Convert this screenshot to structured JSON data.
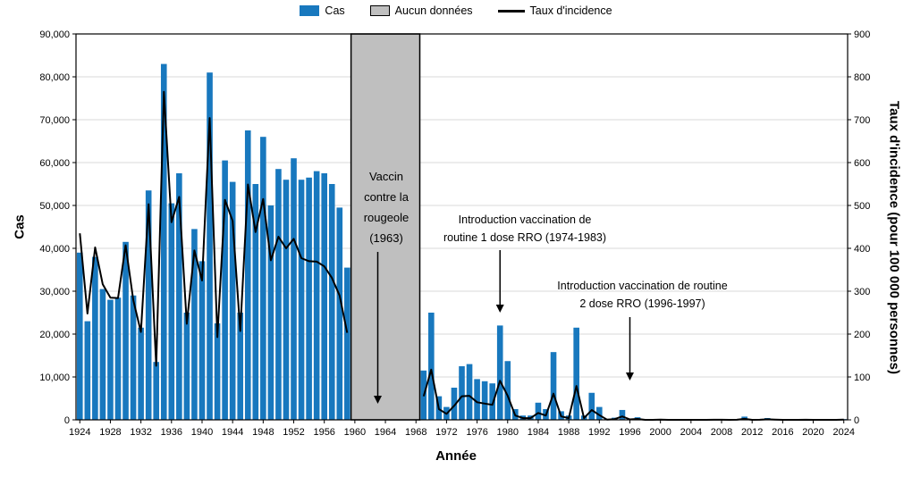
{
  "legend": {
    "cas": "Cas",
    "no_data": "Aucun données",
    "taux": "Taux d'incidence"
  },
  "axes": {
    "y_left_label": "Cas",
    "y_right_label": "Taux d'incidence (pour 100 000 personnes)",
    "x_label": "Année",
    "y_left_max": 90000,
    "y_left_step": 10000,
    "y_right_max": 900,
    "y_right_step": 100,
    "x_tick_start": 1924,
    "x_tick_step": 4,
    "x_tick_end": 2024
  },
  "annotations": {
    "vaccine": {
      "lines": [
        "Vaccin",
        "contre la",
        "rougeole",
        "(1963)"
      ],
      "arrow_year": 1963
    },
    "rro1": {
      "lines": [
        "Introduction vaccination de",
        "routine 1 dose RRO (1974-1983)"
      ],
      "arrow_year": 1979
    },
    "rro2": {
      "lines": [
        "Introduction vaccination de routine",
        "2 dose RRO (1996-1997)"
      ],
      "arrow_year": 1996
    }
  },
  "colors": {
    "bar": "#1878BE",
    "no_data_fill": "#BFBFBF",
    "line": "#000000",
    "grid": "#D9D9D9"
  },
  "chart_data": {
    "type": "bar",
    "title": "",
    "xlabel": "Année",
    "ylabel_left": "Cas",
    "ylabel_right": "Taux d'incidence (pour 100 000 personnes)",
    "x_start": 1924,
    "x_end": 2024,
    "y_left_range": [
      0,
      90000
    ],
    "y_right_range": [
      0,
      900
    ],
    "grid": true,
    "legend_position": "top",
    "no_data_region": {
      "start": 1959.5,
      "end": 1968.5,
      "label": "Aucun données"
    },
    "series": [
      {
        "name": "Cas",
        "type": "bar",
        "axis": "left",
        "values": [
          39000,
          23000,
          38000,
          30500,
          28000,
          28500,
          41500,
          29000,
          21500,
          53500,
          13500,
          83000,
          50500,
          57500,
          25000,
          44500,
          37000,
          81000,
          22500,
          60500,
          55500,
          25000,
          67500,
          55000,
          66000,
          50000,
          58500,
          56000,
          61000,
          56000,
          56500,
          58000,
          57500,
          55000,
          49500,
          35500,
          null,
          null,
          null,
          null,
          null,
          null,
          null,
          null,
          null,
          11500,
          25000,
          5500,
          3000,
          7500,
          12500,
          13000,
          9500,
          9000,
          8500,
          22000,
          13700,
          2500,
          1000,
          1000,
          4000,
          2500,
          15800,
          2000,
          1000,
          21500,
          1000,
          6300,
          3000,
          200,
          500,
          2300,
          300,
          600,
          20,
          30,
          200,
          30,
          10,
          20,
          10,
          10,
          10,
          100,
          60,
          10,
          100,
          750,
          10,
          80,
          420,
          200,
          10,
          50,
          30,
          110,
          0,
          0,
          0,
          10,
          150
        ]
      },
      {
        "name": "Taux d'incidence",
        "type": "line",
        "axis": "right",
        "values": [
          435,
          248,
          402,
          316,
          285,
          284,
          407,
          279,
          205,
          503,
          126,
          765,
          461,
          520,
          224,
          395,
          325,
          704,
          193,
          513,
          464,
          207,
          549,
          438,
          515,
          372,
          427,
          400,
          422,
          377,
          370,
          369,
          358,
          331,
          290,
          203,
          null,
          null,
          null,
          null,
          null,
          null,
          null,
          null,
          null,
          55,
          117,
          25,
          14,
          33,
          55,
          56,
          41,
          38,
          35,
          91,
          56,
          10,
          4,
          4,
          16,
          10,
          61,
          8,
          4,
          79,
          4,
          23,
          11,
          0.7,
          1.7,
          8,
          1,
          2,
          0.1,
          0.1,
          0.7,
          0.1,
          0,
          0.1,
          0,
          0,
          0,
          0.3,
          0.2,
          0,
          0.3,
          2.2,
          0,
          0.2,
          1.2,
          0.6,
          0,
          0.1,
          0.1,
          0.3,
          0,
          0,
          0,
          0,
          0.4
        ]
      }
    ]
  }
}
